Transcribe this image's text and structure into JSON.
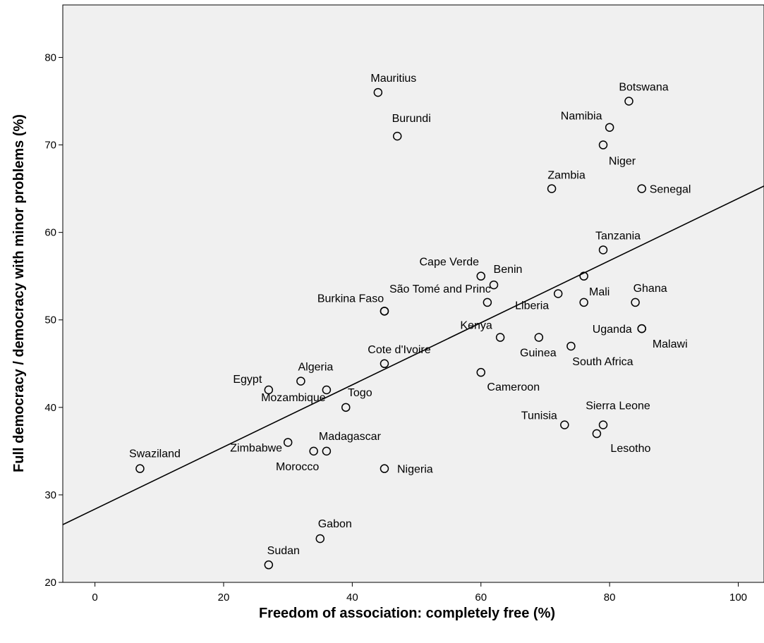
{
  "chart_data": {
    "type": "scatter",
    "title": "",
    "xlabel": "Freedom of association: completely free (%)",
    "ylabel": "Full democracy / democracy with minor problems (%)",
    "xlim": [
      -5,
      104
    ],
    "ylim": [
      20,
      86
    ],
    "xticks": [
      "0",
      "20",
      "40",
      "60",
      "80",
      "100"
    ],
    "yticks": [
      "20",
      "30",
      "40",
      "50",
      "60",
      "70",
      "80"
    ],
    "grid": false,
    "background": "#f0f0f0",
    "marker_color": "#000000",
    "fit_line": {
      "x": [
        -5,
        104
      ],
      "y": [
        26.6,
        65.3
      ]
    },
    "points": [
      {
        "name": "Mauritius",
        "x": 44,
        "y": 76
      },
      {
        "name": "Burundi",
        "x": 47,
        "y": 71
      },
      {
        "name": "Botswana",
        "x": 83,
        "y": 75
      },
      {
        "name": "Namibia",
        "x": 80,
        "y": 72
      },
      {
        "name": "Niger",
        "x": 79,
        "y": 70
      },
      {
        "name": "Zambia",
        "x": 71,
        "y": 65
      },
      {
        "name": "Senegal",
        "x": 85,
        "y": 65
      },
      {
        "name": "Tanzania",
        "x": 79,
        "y": 58
      },
      {
        "name": "Cape Verde",
        "x": 60,
        "y": 55
      },
      {
        "name": "Benin",
        "x": 62,
        "y": 54
      },
      {
        "name": "",
        "x": 76,
        "y": 55
      },
      {
        "name": "São Tomé and Princ",
        "x": 61,
        "y": 52
      },
      {
        "name": "",
        "x": 45,
        "y": 51
      },
      {
        "name": "Liberia",
        "x": 72,
        "y": 53
      },
      {
        "name": "Mali",
        "x": 76,
        "y": 52
      },
      {
        "name": "Ghana",
        "x": 84,
        "y": 52
      },
      {
        "name": "Uganda",
        "x": 85,
        "y": 49
      },
      {
        "name": "Malawi",
        "x": 85,
        "y": 49
      },
      {
        "name": "Burkina Faso",
        "x": 45,
        "y": 51
      },
      {
        "name": "Kenya",
        "x": 63,
        "y": 48
      },
      {
        "name": "Guinea",
        "x": 69,
        "y": 48
      },
      {
        "name": "South Africa",
        "x": 74,
        "y": 47
      },
      {
        "name": "Cote d'Ivoire",
        "x": 45,
        "y": 45
      },
      {
        "name": "Cameroon",
        "x": 60,
        "y": 44
      },
      {
        "name": "Egypt",
        "x": 27,
        "y": 42
      },
      {
        "name": "Algeria",
        "x": 32,
        "y": 43
      },
      {
        "name": "Mozambique",
        "x": 36,
        "y": 42
      },
      {
        "name": "Togo",
        "x": 39,
        "y": 40
      },
      {
        "name": "Tunisia",
        "x": 73,
        "y": 38
      },
      {
        "name": "Sierra Leone",
        "x": 79,
        "y": 38
      },
      {
        "name": "Lesotho",
        "x": 78,
        "y": 37
      },
      {
        "name": "Madagascar",
        "x": 36,
        "y": 35
      },
      {
        "name": "Zimbabwe",
        "x": 30,
        "y": 36
      },
      {
        "name": "Morocco",
        "x": 34,
        "y": 35
      },
      {
        "name": "Nigeria",
        "x": 45,
        "y": 33
      },
      {
        "name": "Swaziland",
        "x": 7,
        "y": 33
      },
      {
        "name": "Gabon",
        "x": 35,
        "y": 25
      },
      {
        "name": "Sudan",
        "x": 27,
        "y": 22
      }
    ]
  }
}
